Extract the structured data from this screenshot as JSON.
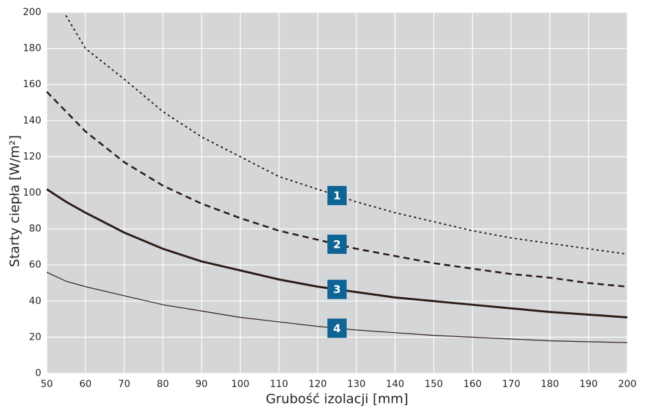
{
  "chart_data": {
    "type": "line",
    "x_label": "Grubość izolacji [mm]",
    "y_label": "Starty ciepła [W/m²]",
    "x": [
      50,
      55,
      60,
      70,
      80,
      90,
      100,
      110,
      120,
      130,
      140,
      150,
      160,
      170,
      180,
      190,
      200
    ],
    "series": [
      {
        "name": "1",
        "color": "#2b1a14",
        "line_style": "dotted",
        "values": [
          null,
          198,
          180,
          163,
          145,
          131,
          120,
          109,
          102,
          95,
          89,
          84,
          79,
          75,
          72,
          69,
          66
        ]
      },
      {
        "name": "2",
        "color": "#2b1a14",
        "line_style": "dashed",
        "values": [
          156,
          145,
          134,
          117,
          104,
          94,
          86,
          79,
          74,
          69,
          65,
          61,
          58,
          55,
          53,
          50,
          48
        ]
      },
      {
        "name": "3",
        "color": "#2b1a14",
        "line_style": "thick",
        "values": [
          102,
          95,
          89,
          78,
          69,
          62,
          57,
          52,
          48,
          45,
          42,
          40,
          38,
          36,
          34,
          32.5,
          31
        ]
      },
      {
        "name": "4",
        "color": "#2b1a14",
        "line_style": "thin",
        "values": [
          56,
          51,
          48,
          43,
          38,
          34.5,
          31,
          28.5,
          26,
          24,
          22.5,
          21,
          20,
          19,
          18,
          17.5,
          17
        ]
      }
    ],
    "label_color": "#0f6496",
    "xlim": [
      50,
      200
    ],
    "xticks": [
      50,
      60,
      70,
      80,
      90,
      100,
      110,
      120,
      130,
      140,
      150,
      160,
      170,
      180,
      190,
      200
    ],
    "ylim": [
      0,
      200
    ],
    "yticks": [
      0,
      20,
      40,
      60,
      80,
      100,
      120,
      140,
      160,
      180,
      200
    ],
    "grid": true,
    "background": "#d5d6d8"
  }
}
